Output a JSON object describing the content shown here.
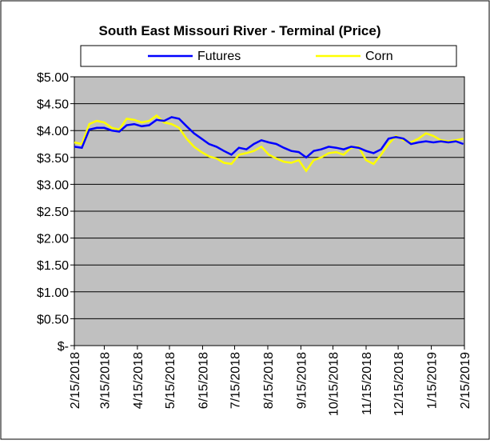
{
  "chart_data": {
    "type": "line",
    "title": "South East Missouri River - Terminal (Price)",
    "x": [
      "2/15/2018",
      "2/22/2018",
      "3/1/2018",
      "3/8/2018",
      "3/15/2018",
      "3/22/2018",
      "3/29/2018",
      "4/5/2018",
      "4/12/2018",
      "4/19/2018",
      "4/26/2018",
      "5/3/2018",
      "5/10/2018",
      "5/17/2018",
      "5/24/2018",
      "5/31/2018",
      "6/7/2018",
      "6/14/2018",
      "6/21/2018",
      "6/28/2018",
      "7/5/2018",
      "7/12/2018",
      "7/19/2018",
      "7/26/2018",
      "8/2/2018",
      "8/9/2018",
      "8/16/2018",
      "8/23/2018",
      "8/30/2018",
      "9/6/2018",
      "9/13/2018",
      "9/20/2018",
      "9/27/2018",
      "10/4/2018",
      "10/11/2018",
      "10/18/2018",
      "10/25/2018",
      "11/1/2018",
      "11/8/2018",
      "11/15/2018",
      "11/22/2018",
      "11/29/2018",
      "12/6/2018",
      "12/13/2018",
      "12/20/2018",
      "12/27/2018",
      "1/3/2019",
      "1/10/2019",
      "1/17/2019",
      "1/24/2019",
      "1/31/2019",
      "2/7/2019",
      "2/14/2019"
    ],
    "series": [
      {
        "name": "Futures",
        "color": "#0000ff",
        "values": [
          3.7,
          3.68,
          4.02,
          4.05,
          4.05,
          4.0,
          3.98,
          4.1,
          4.12,
          4.08,
          4.1,
          4.2,
          4.18,
          4.25,
          4.22,
          4.08,
          3.95,
          3.85,
          3.75,
          3.7,
          3.62,
          3.55,
          3.68,
          3.65,
          3.75,
          3.82,
          3.78,
          3.75,
          3.68,
          3.62,
          3.6,
          3.5,
          3.62,
          3.65,
          3.7,
          3.68,
          3.65,
          3.7,
          3.68,
          3.62,
          3.58,
          3.65,
          3.85,
          3.88,
          3.85,
          3.75,
          3.78,
          3.8,
          3.78,
          3.8,
          3.78,
          3.8,
          3.75
        ]
      },
      {
        "name": "Corn",
        "color": "#ffff00",
        "values": [
          3.78,
          3.75,
          4.12,
          4.18,
          4.15,
          4.05,
          4.02,
          4.22,
          4.2,
          4.15,
          4.18,
          4.28,
          4.15,
          4.12,
          4.05,
          3.85,
          3.7,
          3.6,
          3.52,
          3.48,
          3.4,
          3.38,
          3.55,
          3.58,
          3.62,
          3.7,
          3.55,
          3.48,
          3.42,
          3.4,
          3.45,
          3.25,
          3.45,
          3.5,
          3.58,
          3.6,
          3.55,
          3.68,
          3.7,
          3.45,
          3.38,
          3.55,
          3.75,
          3.9,
          3.82,
          3.78,
          3.85,
          3.95,
          3.9,
          3.82,
          3.8,
          3.82,
          3.85
        ]
      }
    ],
    "xlim": [
      "2/15/2018",
      "2/15/2019"
    ],
    "xticks": [
      "2/15/2018",
      "3/15/2018",
      "4/15/2018",
      "5/15/2018",
      "6/15/2018",
      "7/15/2018",
      "8/15/2018",
      "9/15/2018",
      "10/15/2018",
      "11/15/2018",
      "12/15/2018",
      "1/15/2019",
      "2/15/2019"
    ],
    "ylim": [
      0,
      5
    ],
    "yticks": [
      {
        "value": 0,
        "label": "$-"
      },
      {
        "value": 0.5,
        "label": "$0.50"
      },
      {
        "value": 1,
        "label": "$1.00"
      },
      {
        "value": 1.5,
        "label": "$1.50"
      },
      {
        "value": 2,
        "label": "$2.00"
      },
      {
        "value": 2.5,
        "label": "$2.50"
      },
      {
        "value": 3,
        "label": "$3.00"
      },
      {
        "value": 3.5,
        "label": "$3.50"
      },
      {
        "value": 4,
        "label": "$4.00"
      },
      {
        "value": 4.5,
        "label": "$4.50"
      },
      {
        "value": 5,
        "label": "$5.00"
      }
    ],
    "grid": true,
    "legend": "top"
  }
}
